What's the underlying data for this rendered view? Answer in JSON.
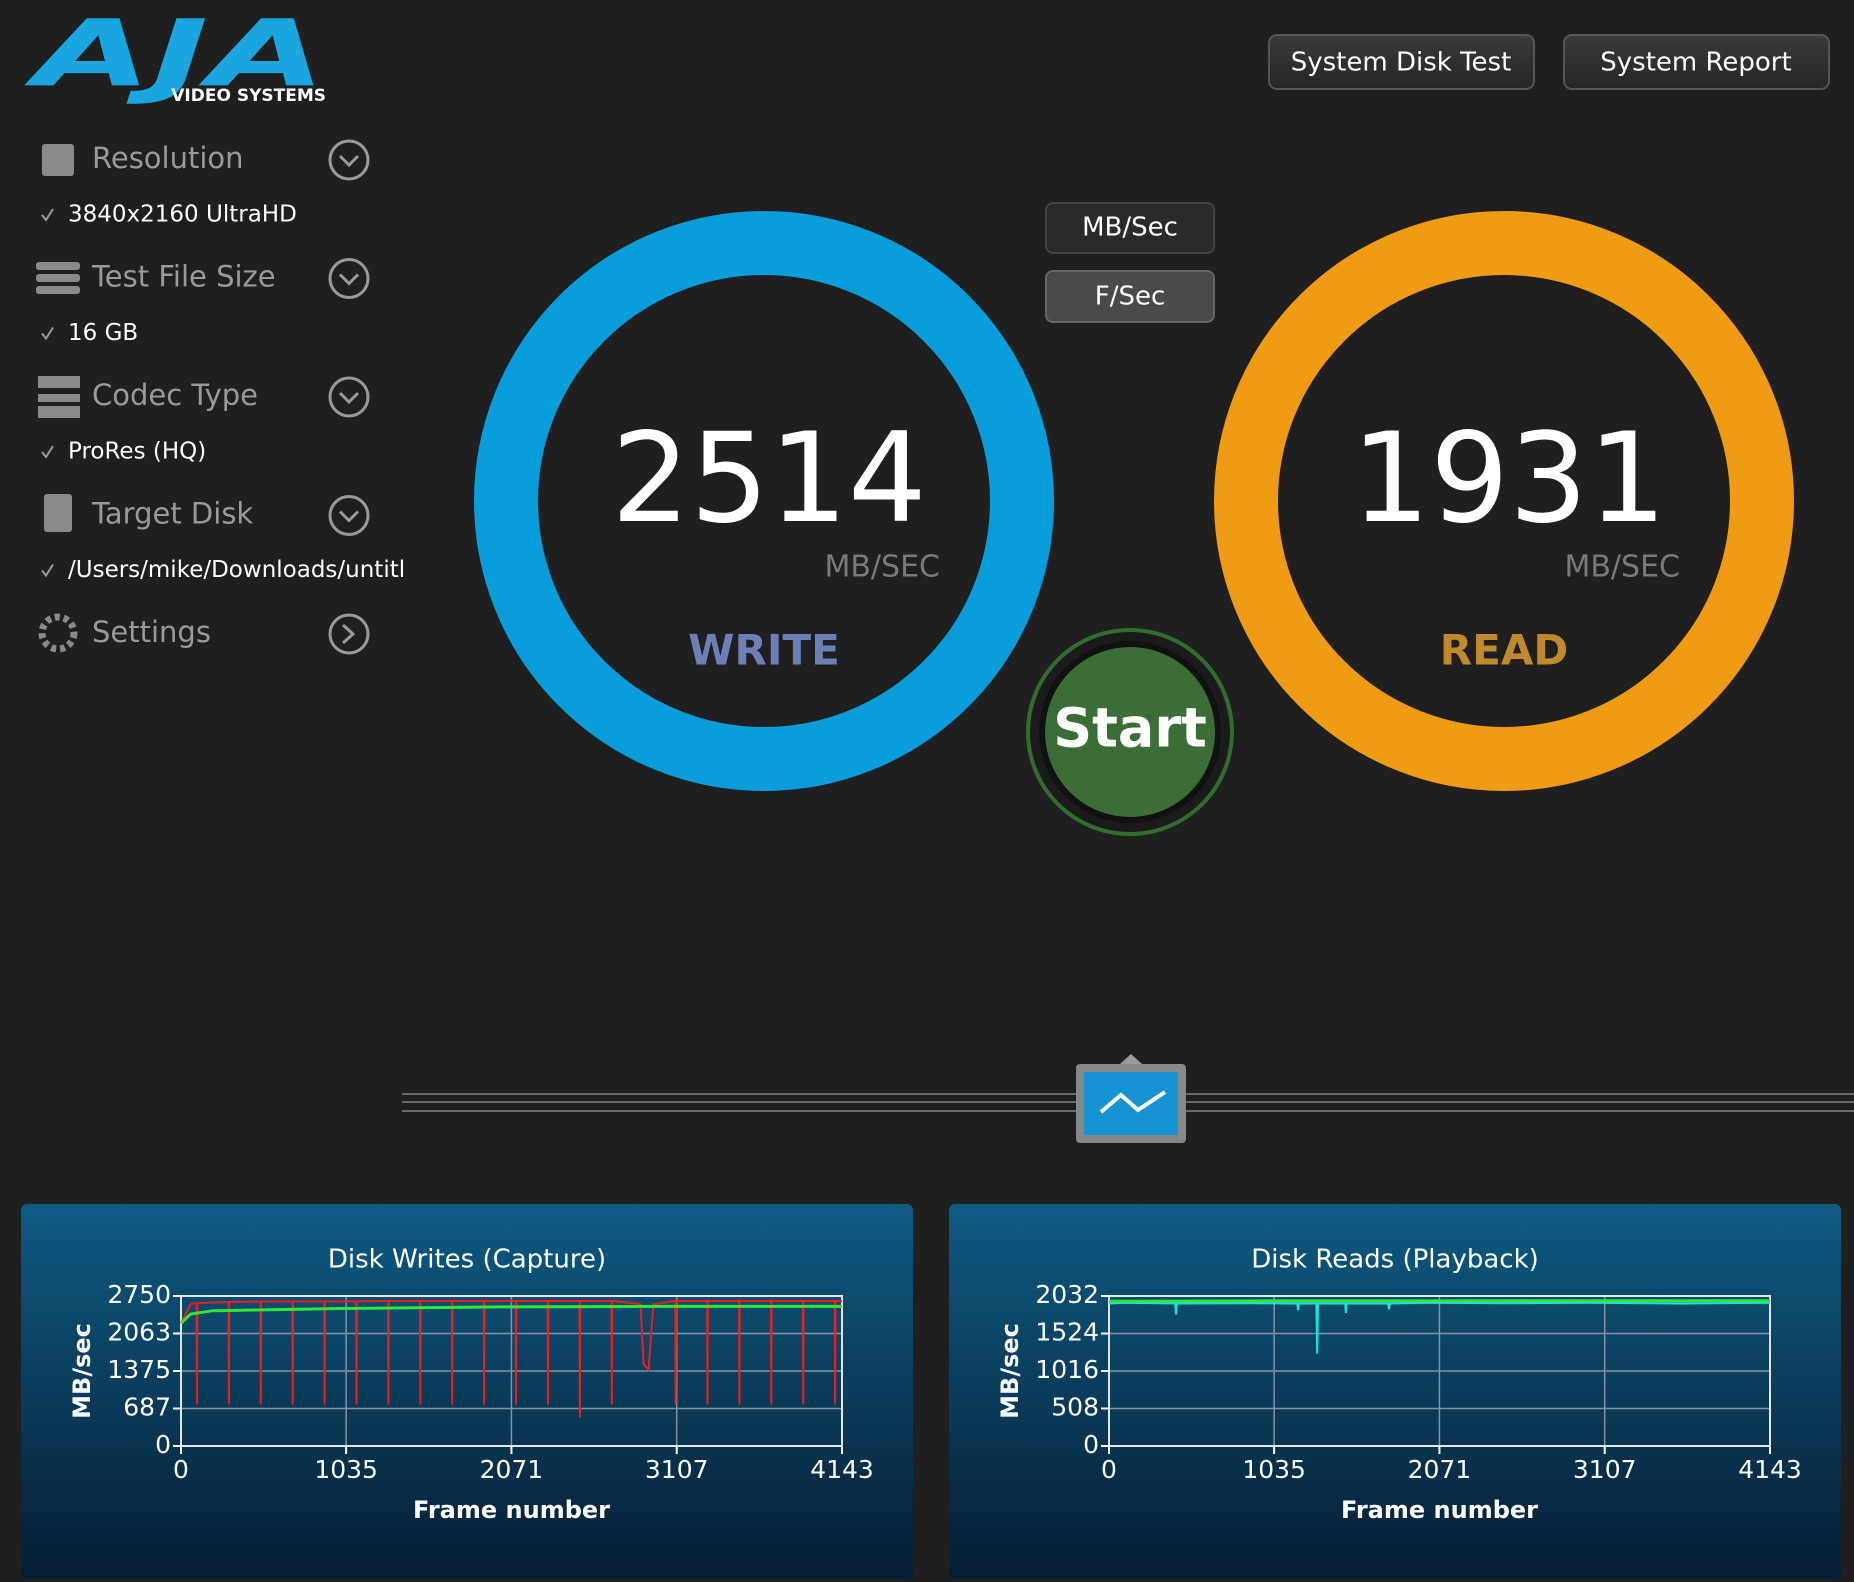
{
  "logo": {
    "brand": "AJA",
    "tagline": "VIDEO SYSTEMS"
  },
  "buttons": [
    "System Disk Test",
    "System Report"
  ],
  "sidebar": [
    {
      "label": "Resolution",
      "value": "3840x2160 UltraHD"
    },
    {
      "label": "Test File Size",
      "value": "16 GB"
    },
    {
      "label": "Codec Type",
      "value": "ProRes (HQ)"
    },
    {
      "label": "Target Disk",
      "value": "/Users/mike/Downloads/untitl"
    },
    {
      "label": "Settings"
    }
  ],
  "unit_toggle": [
    "MB/Sec",
    "F/Sec"
  ],
  "start": "Start",
  "gauges": [
    {
      "value": 2514,
      "unit": "MB/SEC",
      "label": "WRITE",
      "color": "#0a9ddc",
      "label_color": "#6b80b4"
    },
    {
      "value": 1931,
      "unit": "MB/SEC",
      "label": "READ",
      "color": "#f09b14",
      "label_color": "#bf8a2c"
    }
  ],
  "chart_data": [
    {
      "type": "line",
      "title": "Disk Writes (Capture)",
      "xlabel": "Frame number",
      "ylabel": "MB/sec",
      "xlim": [
        0,
        4143
      ],
      "ylim": [
        0,
        2750
      ],
      "xticks": [
        0,
        1035,
        2071,
        3107,
        4143
      ],
      "yticks": [
        0,
        687,
        1375,
        2063,
        2750
      ],
      "grid": true,
      "series": [
        {
          "color": "#ee1c1c",
          "x": [
            0,
            60,
            98,
            100,
            102,
            298,
            300,
            302,
            498,
            500,
            502,
            698,
            700,
            702,
            898,
            900,
            902,
            1098,
            1100,
            1102,
            1298,
            1300,
            1302,
            1498,
            1500,
            1502,
            1698,
            1700,
            1702,
            1898,
            1900,
            1902,
            2098,
            2100,
            2102,
            2298,
            2300,
            2302,
            2498,
            2500,
            2502,
            2698,
            2700,
            2702,
            2880,
            2900,
            2930,
            2960,
            3098,
            3100,
            3102,
            3298,
            3300,
            3302,
            3498,
            3500,
            3502,
            3698,
            3700,
            3702,
            3898,
            3900,
            3902,
            4098,
            4100,
            4102,
            4143
          ],
          "values": [
            2250,
            2600,
            2620,
            760,
            2620,
            2640,
            760,
            2640,
            2650,
            760,
            2650,
            2650,
            760,
            2650,
            2650,
            760,
            2650,
            2650,
            760,
            2650,
            2660,
            760,
            2660,
            2660,
            760,
            2660,
            2660,
            760,
            2660,
            2660,
            760,
            2660,
            2660,
            760,
            2660,
            2660,
            760,
            2660,
            2660,
            520,
            2660,
            2660,
            760,
            2660,
            2600,
            1500,
            1400,
            2600,
            2660,
            760,
            2660,
            2660,
            760,
            2660,
            2660,
            760,
            2660,
            2660,
            760,
            2660,
            2660,
            760,
            2660,
            2660,
            760,
            2660,
            2660
          ]
        },
        {
          "color": "#33e633",
          "x": [
            0,
            60,
            200,
            600,
            1000,
            2000,
            3000,
            4143
          ],
          "values": [
            2250,
            2420,
            2480,
            2500,
            2520,
            2550,
            2560,
            2560
          ]
        }
      ]
    },
    {
      "type": "line",
      "title": "Disk Reads (Playback)",
      "xlabel": "Frame number",
      "ylabel": "MB/sec",
      "xlim": [
        0,
        4143
      ],
      "ylim": [
        0,
        2032
      ],
      "xticks": [
        0,
        1035,
        2071,
        3107,
        4143
      ],
      "yticks": [
        0,
        508,
        1016,
        1524,
        2032
      ],
      "grid": true,
      "series": [
        {
          "color": "#19e6d6",
          "x": [
            0,
            100,
            415,
            420,
            425,
            900,
            1180,
            1185,
            1190,
            1300,
            1305,
            1310,
            1480,
            1485,
            1490,
            1750,
            1755,
            1760,
            2000,
            2500,
            3000,
            3600,
            4143
          ],
          "values": [
            1930,
            1940,
            1930,
            1780,
            1930,
            1935,
            1930,
            1840,
            1930,
            1930,
            1250,
            1930,
            1930,
            1800,
            1930,
            1930,
            1850,
            1930,
            1940,
            1935,
            1940,
            1930,
            1940
          ]
        },
        {
          "color": "#33e633",
          "x": [
            0,
            1000,
            2000,
            3000,
            4143
          ],
          "values": [
            1960,
            1965,
            1965,
            1968,
            1968
          ]
        }
      ]
    }
  ]
}
